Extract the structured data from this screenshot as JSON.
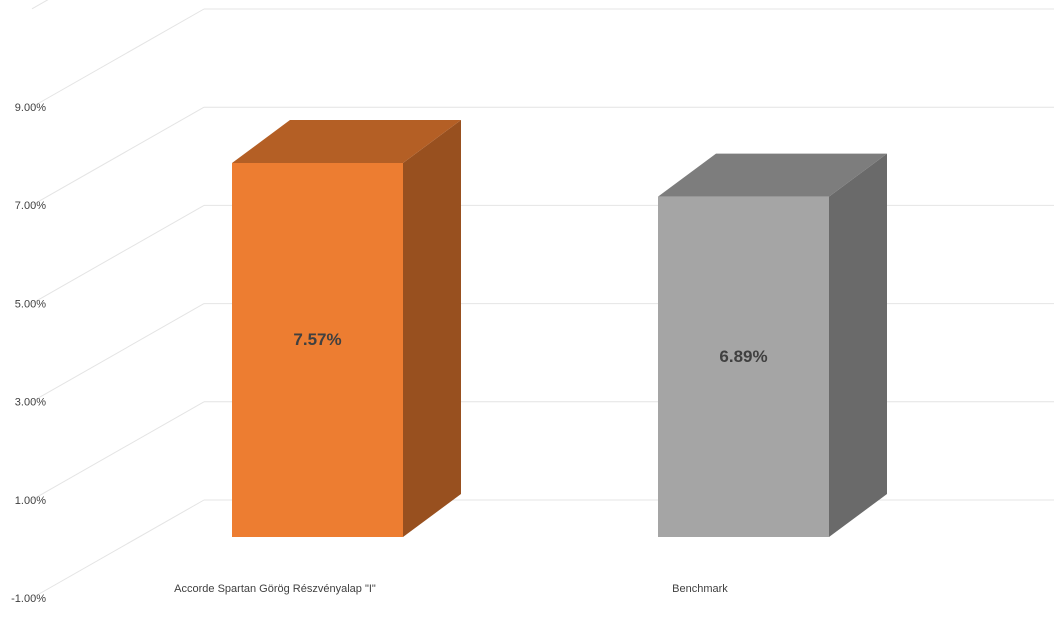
{
  "chart_data": {
    "type": "bar",
    "three_d": true,
    "categories": [
      "Accorde Spartan Görög Részvényalap \"I\"",
      "Benchmark"
    ],
    "series": [
      {
        "values": [
          7.57,
          6.89
        ]
      }
    ],
    "data_labels": [
      "7.57%",
      "6.89%"
    ],
    "bar_colors": [
      "#ED7D31",
      "#A5A5A5"
    ],
    "y_ticks": [
      "9.00%",
      "7.00%",
      "5.00%",
      "3.00%",
      "1.00%",
      "-1.00%"
    ],
    "y_tick_values": [
      9,
      7,
      5,
      3,
      1,
      -1
    ],
    "ylim": [
      -1,
      11
    ],
    "grid": true,
    "legend": "none",
    "title": "",
    "xlabel": "",
    "ylabel": ""
  }
}
